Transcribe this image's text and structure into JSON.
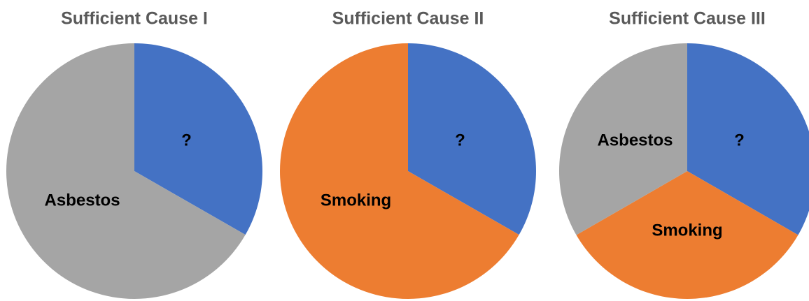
{
  "chart_data": [
    {
      "type": "pie",
      "title": "Sufficient Cause I",
      "categories": [
        "?",
        "Asbestos"
      ],
      "values": [
        33.3,
        66.7
      ],
      "colors": [
        "#4472c4",
        "#a5a5a5"
      ]
    },
    {
      "type": "pie",
      "title": "Sufficient Cause II",
      "categories": [
        "?",
        "Smoking"
      ],
      "values": [
        33.3,
        66.7
      ],
      "colors": [
        "#4472c4",
        "#ed7d31"
      ]
    },
    {
      "type": "pie",
      "title": "Sufficient Cause III",
      "categories": [
        "?",
        "Smoking",
        "Asbestos"
      ],
      "values": [
        33.3,
        33.3,
        33.3
      ],
      "colors": [
        "#4472c4",
        "#ed7d31",
        "#a5a5a5"
      ]
    }
  ]
}
